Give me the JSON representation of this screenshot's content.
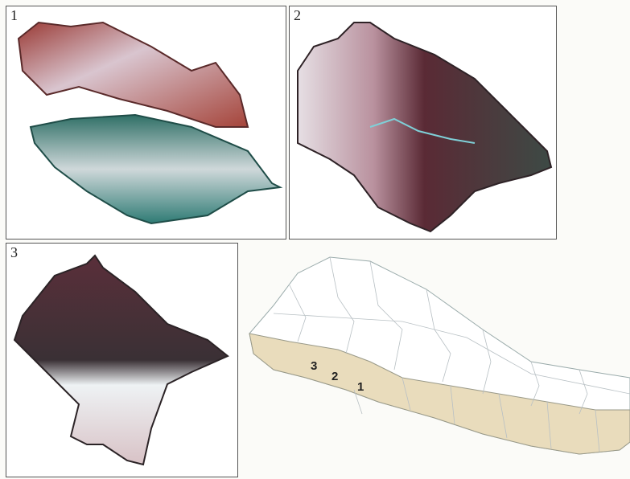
{
  "panels": [
    {
      "label": "1"
    },
    {
      "label": "2"
    },
    {
      "label": "3"
    }
  ],
  "map": {
    "labels": [
      "3",
      "2",
      "1"
    ]
  }
}
